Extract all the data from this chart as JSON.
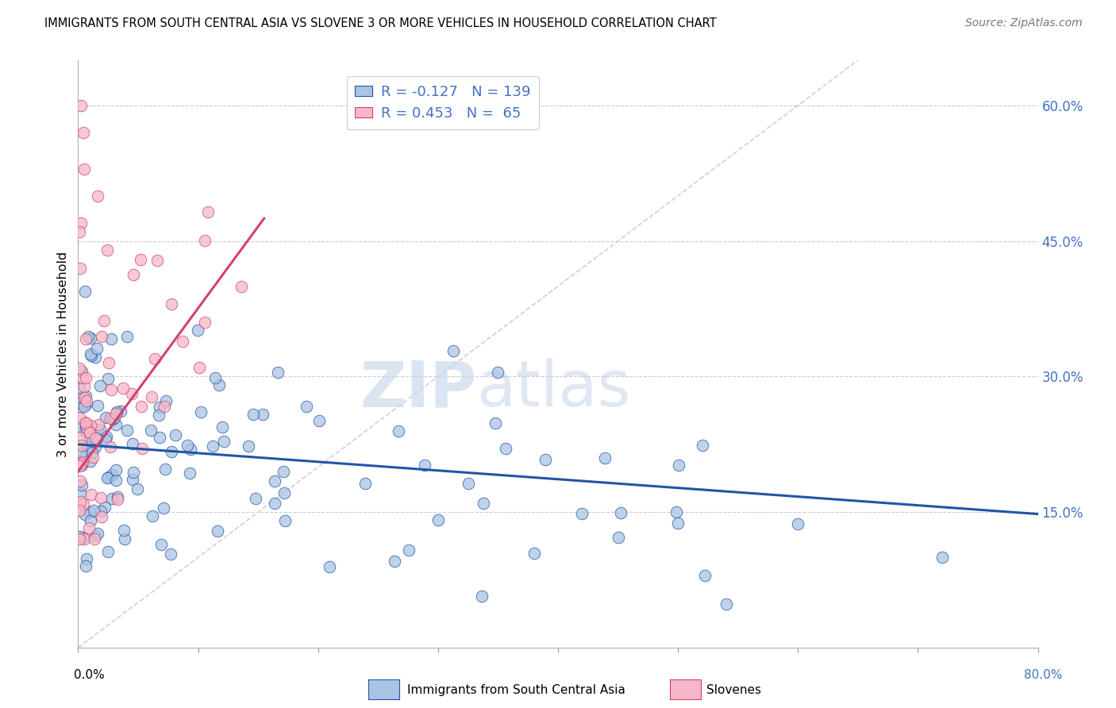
{
  "title": "IMMIGRANTS FROM SOUTH CENTRAL ASIA VS SLOVENE 3 OR MORE VEHICLES IN HOUSEHOLD CORRELATION CHART",
  "source": "Source: ZipAtlas.com",
  "ylabel": "3 or more Vehicles in Household",
  "ytick_labels": [
    "15.0%",
    "30.0%",
    "45.0%",
    "60.0%"
  ],
  "ytick_values": [
    0.15,
    0.3,
    0.45,
    0.6
  ],
  "xlim": [
    0.0,
    0.8
  ],
  "ylim": [
    0.0,
    0.65
  ],
  "watermark_zip": "ZIP",
  "watermark_atlas": "atlas",
  "legend_label1": "Immigrants from South Central Asia",
  "legend_label2": "Slovenes",
  "R1": -0.127,
  "N1": 139,
  "R2": 0.453,
  "N2": 65,
  "color1": "#aac4e2",
  "color2": "#f5b8c8",
  "line_color1": "#2156a5",
  "line_color2": "#d44070",
  "diagonal_color": "#d0d0d0",
  "blue_line_x": [
    0.0,
    0.8
  ],
  "blue_line_y": [
    0.225,
    0.148
  ],
  "pink_line_x": [
    0.0,
    0.155
  ],
  "pink_line_y": [
    0.195,
    0.475
  ]
}
